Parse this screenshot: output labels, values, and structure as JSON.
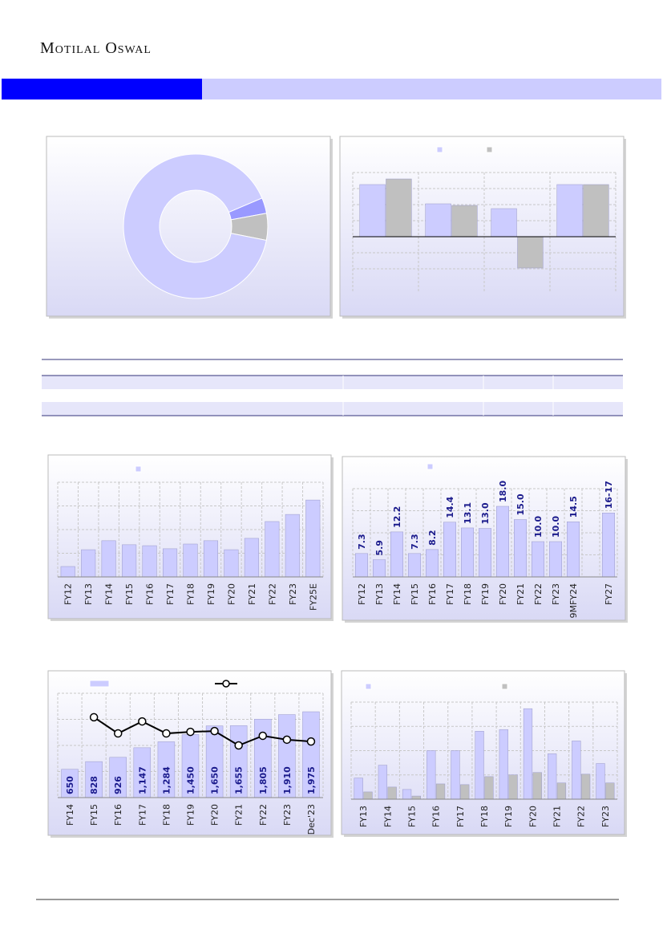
{
  "header": {
    "brand": "Motilal Oswal"
  },
  "chart_data": [
    {
      "type": "donut",
      "values": [
        3.5,
        6,
        90.5
      ],
      "colors": [
        "#9999ff",
        "#c0c0c0",
        "#ccccff"
      ]
    },
    {
      "type": "bar",
      "categories": [
        null,
        null,
        null,
        null
      ],
      "series": [
        {
          "color": "#ccccff",
          "values": [
            3.25,
            2.05,
            1.75,
            3.25
          ]
        },
        {
          "color": "#c0c0c0",
          "values": [
            3.6,
            1.95,
            -1.95,
            3.25
          ]
        }
      ],
      "ylim": [
        -3.45,
        4
      ],
      "yticks": [
        -2,
        -1,
        0,
        1,
        2,
        3,
        4
      ],
      "grid": true
    },
    {
      "type": "bar",
      "categories": [
        "FY12",
        "FY13",
        "FY14",
        "FY15",
        "FY16",
        "FY17",
        "FY18",
        "FY19",
        "FY20",
        "FY21",
        "FY22",
        "FY23",
        "FY25E"
      ],
      "values": [
        0.44,
        1.15,
        1.53,
        1.36,
        1.32,
        1.19,
        1.39,
        1.53,
        1.15,
        1.63,
        2.34,
        2.64,
        3.25
      ],
      "color": "#ccccff",
      "ylim": [
        0,
        4
      ],
      "yticks": [
        0,
        1,
        2,
        3,
        4
      ],
      "grid": true
    },
    {
      "type": "bar",
      "categories": [
        "FY12",
        "FY13",
        "FY14",
        "FY15",
        "FY16",
        "FY17",
        "FY18",
        "FY19",
        "FY20",
        "FY21",
        "FY22",
        "FY23",
        "9MFY24",
        null,
        "FY27"
      ],
      "values": [
        7.3,
        5.9,
        12.2,
        7.3,
        8.2,
        14.4,
        13.1,
        13.0,
        18.0,
        15.0,
        10.0,
        10.0,
        14.5,
        null,
        16.5
      ],
      "value_labels": [
        "7.3",
        "5.9",
        "12.2",
        "7.3",
        "8.2",
        "14.4",
        "13.1",
        "13.0",
        "18.0",
        "15.0",
        "10.0",
        "10.0",
        "14.5",
        null,
        "16-17"
      ],
      "value_label_position": "above",
      "color": "#ccccff",
      "ylim": [
        2,
        22
      ],
      "yticks": [
        2,
        7,
        12,
        17,
        22
      ],
      "grid": true
    },
    {
      "type": "combo",
      "categories": [
        "FY14",
        "FY15",
        "FY16",
        "FY17",
        "FY18",
        "FY19",
        "FY20",
        "FY21",
        "FY22",
        "FY23",
        "Dec'23"
      ],
      "series": [
        {
          "color": "#ccccff",
          "values": [
            650,
            828,
            926,
            1147,
            1284,
            1450,
            1650,
            1655,
            1805,
            1910,
            1975
          ],
          "value_labels": [
            "650",
            "828",
            "926",
            "1,147",
            "1,284",
            "1,450",
            "1,650",
            "1,655",
            "1,805",
            "1,910",
            "1,975"
          ],
          "value_label_position": "inside"
        },
        {
          "color": "#000000",
          "axis": "y2",
          "values": [
            null,
            3.08,
            2.46,
            2.92,
            2.46,
            2.52,
            2.55,
            2.0,
            2.37,
            2.22,
            2.15
          ]
        }
      ],
      "ylim": [
        0,
        2400
      ],
      "yticks": [
        0,
        600,
        1200,
        1800,
        2400
      ],
      "y2lim": [
        0,
        4
      ],
      "grid": true
    },
    {
      "type": "bar",
      "categories": [
        "FY13",
        "FY14",
        "FY15",
        "FY16",
        "FY17",
        "FY18",
        "FY19",
        "FY20",
        "FY21",
        "FY22",
        "FY23"
      ],
      "series": [
        {
          "color": "#ccccff",
          "values": [
            0.87,
            1.4,
            0.4,
            2.0,
            2.0,
            2.8,
            2.87,
            3.73,
            1.87,
            2.4,
            1.47
          ]
        },
        {
          "color": "#c0c0c0",
          "values": [
            0.3,
            0.5,
            0.13,
            0.63,
            0.6,
            0.93,
            1.0,
            1.1,
            0.67,
            1.03,
            0.67
          ]
        }
      ],
      "ylim": [
        0,
        4
      ],
      "yticks": [
        0,
        1,
        2,
        3,
        4
      ],
      "grid": true
    }
  ]
}
